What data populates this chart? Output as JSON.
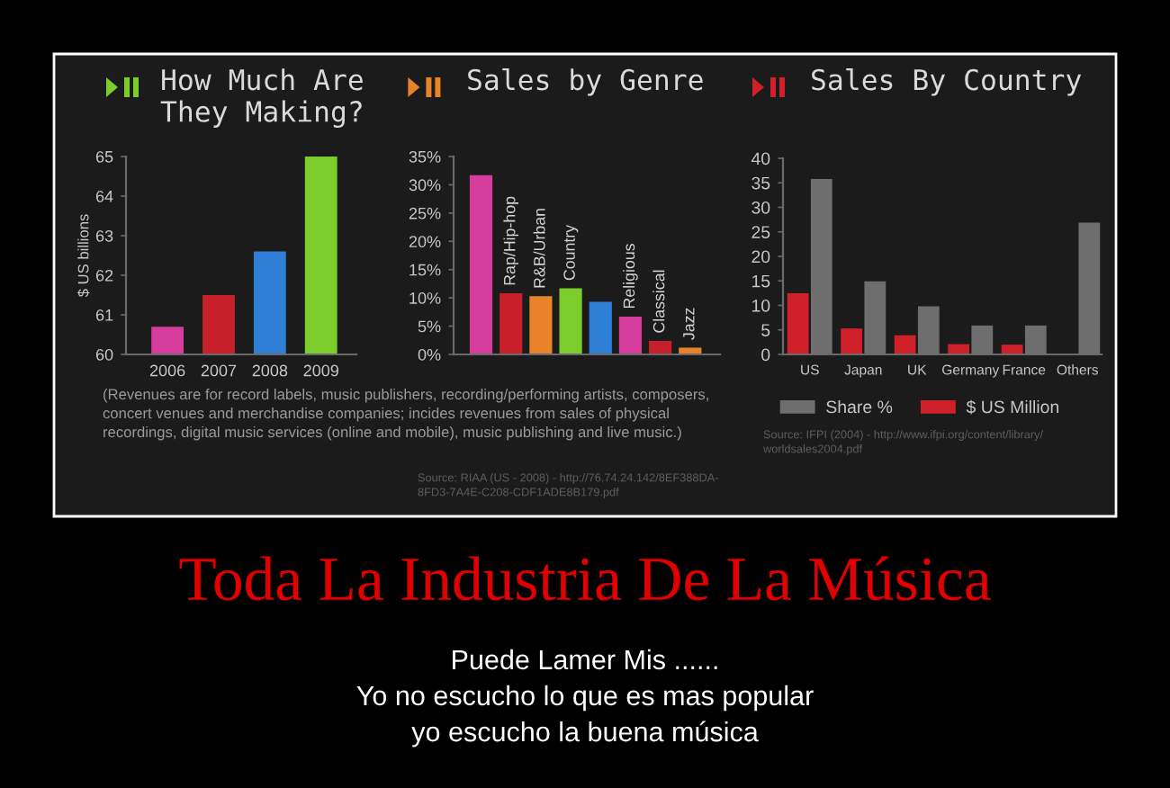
{
  "chart_data": [
    {
      "type": "bar",
      "title": "How Much Are\nThey Making?",
      "ylabel": "$ US billions",
      "categories": [
        "2006",
        "2007",
        "2008",
        "2009"
      ],
      "values": [
        60.7,
        61.5,
        62.6,
        65.0
      ],
      "colors": [
        "#d63c9c",
        "#c8202a",
        "#2f7fd6",
        "#7ccc2c"
      ],
      "ylim": [
        60,
        65
      ],
      "yticks": [
        60,
        61,
        62,
        63,
        64,
        65
      ],
      "annotations": [
        "(Revenues are for record labels, music publishers, recording/performing artists, composers,\nconcert venues and merchandise companies; incides revenues from sales of physical\nrecordings, digital music services (online and mobile), music publishing and live music.)"
      ]
    },
    {
      "type": "bar",
      "title": "Sales by Genre",
      "categories": [
        null,
        "Rap/Hip-hop",
        "R&B/Urban",
        "Country",
        null,
        "Religious",
        "Classical",
        "Jazz"
      ],
      "values": [
        31.7,
        10.8,
        10.3,
        11.7,
        9.3,
        6.7,
        2.4,
        1.2
      ],
      "colors": [
        "#d63c9c",
        "#c8202a",
        "#e8832a",
        "#7ccc2c",
        "#2f7fd6",
        "#d63c9c",
        "#c8202a",
        "#e8832a"
      ],
      "ylim": [
        0,
        35
      ],
      "yticks": [
        {
          "value": 0,
          "label": "0%"
        },
        {
          "value": 5,
          "label": "5%"
        },
        {
          "value": 10,
          "label": "10%"
        },
        {
          "value": 15,
          "label": "15%"
        },
        {
          "value": 20,
          "label": "20%"
        },
        {
          "value": 25,
          "label": "25%"
        },
        {
          "value": 30,
          "label": "30%"
        },
        {
          "value": 35,
          "label": "35%"
        }
      ],
      "annotations": [
        "Source: RIAA (US - 2008) - http://76.74.24.142/8EF388DA-\n8FD3-7A4E-C208-CDF1ADE8B179.pdf"
      ]
    },
    {
      "type": "bar",
      "title": "Sales By Country",
      "categories": [
        "US",
        "Japan",
        "UK",
        "Germany",
        "France",
        "Others"
      ],
      "series": [
        {
          "name": "$ US Million",
          "color": "#d0202a",
          "values": [
            12.5,
            5.3,
            3.9,
            2.1,
            2.0,
            null
          ]
        },
        {
          "name": "Share %",
          "color": "#6e6e6e",
          "values": [
            35.8,
            14.9,
            9.8,
            5.9,
            5.9,
            26.9
          ]
        }
      ],
      "ylim": [
        0,
        40
      ],
      "yticks": [
        0,
        5,
        10,
        15,
        20,
        25,
        30,
        35,
        40
      ],
      "legend": "bottom",
      "annotations": [
        "Source: IFPI (2004) - http://www.ifpi.org/content/library/\nworldsales2004.pdf"
      ]
    },
    {
      "type": "other",
      "title": "Toda La Industria De La Música",
      "annotations": [
        "Puede Lamer Mis ......",
        "Yo no escucho lo que es mas popular",
        "yo escucho la buena música"
      ]
    }
  ]
}
